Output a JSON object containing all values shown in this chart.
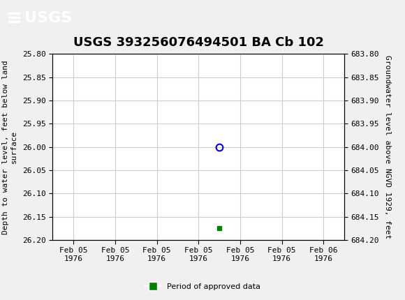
{
  "title": "USGS 393256076494501 BA Cb 102",
  "ylabel_left": "Depth to water level, feet below land\nsurface",
  "ylabel_right": "Groundwater level above NGVD 1929, feet",
  "ylim_left": [
    25.8,
    26.2
  ],
  "ylim_right": [
    683.8,
    684.2
  ],
  "yticks_left": [
    25.8,
    25.85,
    25.9,
    25.95,
    26.0,
    26.05,
    26.1,
    26.15,
    26.2
  ],
  "yticks_right": [
    683.8,
    683.85,
    683.9,
    683.95,
    684.0,
    684.05,
    684.1,
    684.15,
    684.2
  ],
  "data_point_x": 3.5,
  "data_point_y": 26.0,
  "marker_x": 3.5,
  "marker_y": 26.175,
  "xticklabels": [
    "Feb 05\n1976",
    "Feb 05\n1976",
    "Feb 05\n1976",
    "Feb 05\n1976",
    "Feb 05\n1976",
    "Feb 05\n1976",
    "Feb 06\n1976"
  ],
  "xtick_positions": [
    0,
    1,
    2,
    3,
    4,
    5,
    6
  ],
  "xlim": [
    -0.5,
    6.5
  ],
  "background_color": "#f0f0f0",
  "plot_bg_color": "#ffffff",
  "grid_color": "#cccccc",
  "circle_color": "#0000cc",
  "bar_color": "#008000",
  "header_color": "#1a6e31",
  "header_text_color": "#ffffff",
  "legend_label": "Period of approved data",
  "title_fontsize": 13,
  "axis_fontsize": 8,
  "tick_fontsize": 8
}
